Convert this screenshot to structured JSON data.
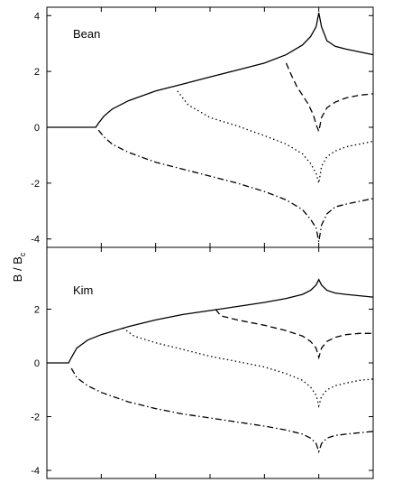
{
  "chart_data": {
    "type": "line",
    "ylabel": "B / B",
    "ylabel_sub": "c",
    "xlabel": "",
    "shared_x": true,
    "x_tick_labels_shown": false,
    "x_ticks": [
      0,
      1,
      2,
      3,
      4,
      5,
      6
    ],
    "xlim": [
      0,
      6
    ],
    "colors": {
      "lines": "#000000",
      "background": "#ffffff"
    },
    "panels": [
      {
        "id": "bean",
        "label": "Bean",
        "ylim": [
          -4.3,
          4.3
        ],
        "y_ticks": [
          -4,
          -2,
          0,
          2,
          4
        ],
        "y_tick_labels": [
          "-4",
          "-2",
          "0",
          "2",
          "4"
        ],
        "series": [
          {
            "style": "solid",
            "x": [
              0,
              0.9,
              0.95,
              1.05,
              1.2,
              1.5,
              2,
              2.5,
              3,
              3.5,
              4,
              4.4,
              4.7,
              4.85,
              4.95,
              5,
              5.05,
              5.15,
              5.3,
              5.5,
              5.75,
              6
            ],
            "y": [
              0,
              0,
              0.15,
              0.4,
              0.65,
              0.95,
              1.3,
              1.55,
              1.8,
              2.05,
              2.3,
              2.6,
              2.95,
              3.25,
              3.6,
              4.1,
              3.6,
              3.1,
              2.9,
              2.8,
              2.7,
              2.6
            ]
          },
          {
            "style": "dashed",
            "x": [
              4.4,
              4.5,
              4.6,
              4.7,
              4.8,
              4.9,
              4.95,
              5,
              5.05,
              5.15,
              5.3,
              5.5,
              5.75,
              6
            ],
            "y": [
              2.3,
              1.85,
              1.45,
              1.15,
              0.85,
              0.45,
              0.1,
              -0.15,
              0.35,
              0.7,
              0.9,
              1.05,
              1.15,
              1.2
            ]
          },
          {
            "style": "dotted",
            "x": [
              2.4,
              2.6,
              3,
              3.5,
              4,
              4.4,
              4.7,
              4.85,
              4.95,
              5,
              5.05,
              5.15,
              5.3,
              5.5,
              5.75,
              6
            ],
            "y": [
              1.3,
              0.8,
              0.35,
              0.05,
              -0.3,
              -0.6,
              -0.95,
              -1.3,
              -1.65,
              -2,
              -1.4,
              -1.05,
              -0.85,
              -0.7,
              -0.6,
              -0.5
            ]
          },
          {
            "style": "dashdot",
            "x": [
              0.95,
              1.05,
              1.2,
              1.5,
              2,
              2.5,
              3,
              3.5,
              4,
              4.4,
              4.7,
              4.85,
              4.95,
              5,
              5.05,
              5.15,
              5.3,
              5.5,
              5.75,
              6
            ],
            "y": [
              -0.1,
              -0.35,
              -0.6,
              -0.9,
              -1.25,
              -1.5,
              -1.75,
              -2,
              -2.3,
              -2.6,
              -2.95,
              -3.3,
              -3.6,
              -4.1,
              -3.5,
              -3.1,
              -2.85,
              -2.75,
              -2.65,
              -2.55
            ]
          }
        ]
      },
      {
        "id": "kim",
        "label": "Kim",
        "ylim": [
          -4.3,
          4.3
        ],
        "y_ticks": [
          -4,
          -2,
          0,
          2
        ],
        "y_tick_labels": [
          "-4",
          "-2",
          "0",
          "2"
        ],
        "series": [
          {
            "style": "solid",
            "x": [
              0,
              0.4,
              0.45,
              0.55,
              0.75,
              1,
              1.5,
              2,
              2.5,
              3,
              3.5,
              4,
              4.4,
              4.7,
              4.85,
              4.95,
              5,
              5.05,
              5.15,
              5.3,
              5.5,
              5.75,
              6
            ],
            "y": [
              0,
              0,
              0.2,
              0.55,
              0.85,
              1.05,
              1.35,
              1.6,
              1.8,
              1.95,
              2.1,
              2.25,
              2.4,
              2.55,
              2.7,
              2.9,
              3.1,
              2.9,
              2.7,
              2.6,
              2.55,
              2.5,
              2.45
            ]
          },
          {
            "style": "dashed",
            "x": [
              3.1,
              3.2,
              3.5,
              4,
              4.4,
              4.7,
              4.85,
              4.95,
              5,
              5.05,
              5.15,
              5.3,
              5.5,
              5.75,
              6
            ],
            "y": [
              2,
              1.75,
              1.6,
              1.4,
              1.2,
              1,
              0.8,
              0.55,
              0.2,
              0.55,
              0.8,
              0.95,
              1.05,
              1.1,
              1.1
            ]
          },
          {
            "style": "dotted",
            "x": [
              1.4,
              1.6,
              2,
              2.5,
              3,
              3.5,
              4,
              4.4,
              4.7,
              4.85,
              4.95,
              5,
              5.05,
              5.15,
              5.3,
              5.5,
              5.75,
              6
            ],
            "y": [
              1.3,
              1,
              0.75,
              0.5,
              0.25,
              0.05,
              -0.15,
              -0.4,
              -0.65,
              -0.9,
              -1.2,
              -1.6,
              -1.25,
              -1,
              -0.85,
              -0.75,
              -0.65,
              -0.6
            ]
          },
          {
            "style": "dashdot",
            "x": [
              0.45,
              0.55,
              0.75,
              1,
              1.5,
              2,
              2.5,
              3,
              3.5,
              4,
              4.4,
              4.7,
              4.85,
              4.95,
              5,
              5.05,
              5.15,
              5.3,
              5.5,
              5.75,
              6
            ],
            "y": [
              -0.2,
              -0.55,
              -0.85,
              -1.1,
              -1.45,
              -1.7,
              -1.9,
              -2.05,
              -2.2,
              -2.35,
              -2.5,
              -2.65,
              -2.8,
              -3,
              -3.3,
              -3,
              -2.8,
              -2.7,
              -2.65,
              -2.6,
              -2.55
            ]
          }
        ]
      }
    ]
  }
}
